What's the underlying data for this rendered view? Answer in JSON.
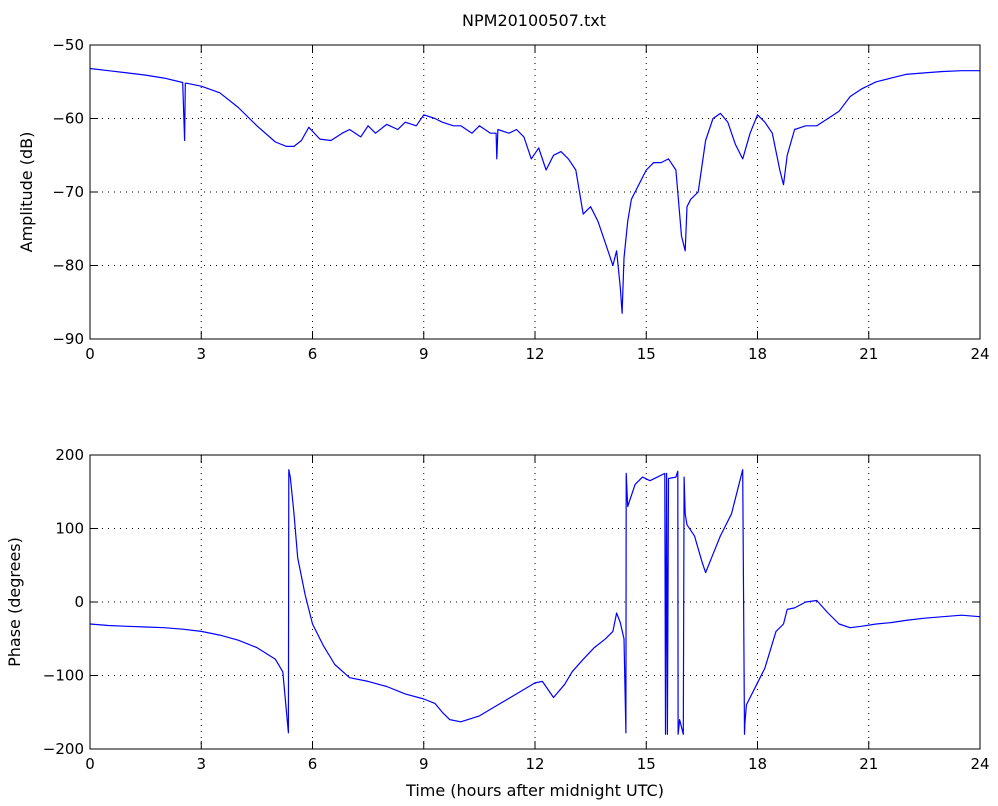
{
  "figure": {
    "title": "NPM20100507.txt"
  },
  "chart_data": [
    {
      "type": "line",
      "title": "NPM20100507.txt",
      "xlabel": "",
      "ylabel": "Amplitude (dB)",
      "xlim": [
        0,
        24
      ],
      "ylim": [
        -90,
        -50
      ],
      "xticks": [
        0,
        3,
        6,
        9,
        12,
        15,
        18,
        21,
        24
      ],
      "yticks": [
        -90,
        -80,
        -70,
        -60,
        -50
      ],
      "ytick_labels": [
        "−90",
        "−80",
        "−70",
        "−60",
        "−50"
      ],
      "grid": true,
      "color": "#0000ff",
      "series": [
        {
          "x": [
            0,
            0.5,
            1,
            1.5,
            2,
            2.5,
            2.55,
            2.57,
            2.6,
            3,
            3.5,
            4,
            4.5,
            5,
            5.3,
            5.5,
            5.7,
            5.9,
            6.2,
            6.5,
            6.8,
            7,
            7.3,
            7.5,
            7.7,
            8,
            8.3,
            8.5,
            8.8,
            9,
            9.3,
            9.5,
            9.8,
            10,
            10.3,
            10.5,
            10.8,
            10.95,
            10.97,
            11,
            11.3,
            11.5,
            11.7,
            11.9,
            12.1,
            12.3,
            12.5,
            12.7,
            12.9,
            13.1,
            13.3,
            13.5,
            13.7,
            13.9,
            14.1,
            14.2,
            14.3,
            14.35,
            14.4,
            14.5,
            14.6,
            14.8,
            15,
            15.2,
            15.4,
            15.6,
            15.8,
            15.95,
            16.05,
            16.1,
            16.2,
            16.4,
            16.6,
            16.8,
            17,
            17.2,
            17.4,
            17.6,
            17.8,
            18,
            18.2,
            18.4,
            18.6,
            18.7,
            18.8,
            19,
            19.3,
            19.6,
            19.9,
            20.2,
            20.5,
            20.8,
            21.2,
            21.6,
            22,
            22.5,
            23,
            23.5,
            24
          ],
          "y": [
            -53.2,
            -53.5,
            -53.8,
            -54.1,
            -54.5,
            -55.1,
            -63,
            -55.2,
            -55.2,
            -55.6,
            -56.5,
            -58.5,
            -61,
            -63.2,
            -63.8,
            -63.8,
            -63,
            -61.2,
            -62.8,
            -63,
            -62,
            -61.5,
            -62.5,
            -61,
            -62,
            -60.8,
            -61.5,
            -60.5,
            -61,
            -59.5,
            -60,
            -60.5,
            -61,
            -61,
            -62,
            -61,
            -62,
            -62,
            -65.5,
            -61.5,
            -62,
            -61.5,
            -62.5,
            -65.5,
            -64,
            -67,
            -65,
            -64.5,
            -65.5,
            -67,
            -73,
            -72,
            -74,
            -77,
            -80,
            -78,
            -83,
            -86.5,
            -79,
            -74,
            -71,
            -69,
            -67,
            -66,
            -66,
            -65.5,
            -67,
            -76,
            -78,
            -72,
            -71,
            -70,
            -63,
            -60,
            -59.3,
            -60.5,
            -63.5,
            -65.5,
            -62,
            -59.5,
            -60.5,
            -62,
            -67,
            -69,
            -65,
            -61.5,
            -61,
            -61,
            -60,
            -59,
            -57,
            -56,
            -55,
            -54.5,
            -54,
            -53.8,
            -53.6,
            -53.5,
            -53.5
          ]
        }
      ]
    },
    {
      "type": "line",
      "title": "",
      "xlabel": "Time (hours after midnight UTC)",
      "ylabel": "Phase (degrees)",
      "xlim": [
        0,
        24
      ],
      "ylim": [
        -200,
        200
      ],
      "xticks": [
        0,
        3,
        6,
        9,
        12,
        15,
        18,
        21,
        24
      ],
      "yticks": [
        -200,
        -100,
        0,
        100,
        200
      ],
      "ytick_labels": [
        "−200",
        "−100",
        "0",
        "100",
        "200"
      ],
      "grid": true,
      "color": "#0000ff",
      "series": [
        {
          "x": [
            0,
            0.5,
            1,
            1.5,
            2,
            2.5,
            3,
            3.5,
            4,
            4.5,
            5,
            5.2,
            5.35,
            5.36,
            5.4,
            5.5,
            5.6,
            5.8,
            6,
            6.3,
            6.6,
            7,
            7.5,
            8,
            8.5,
            9,
            9.3,
            9.5,
            9.7,
            10,
            10.5,
            11,
            11.5,
            12,
            12.2,
            12.5,
            12.8,
            13,
            13.3,
            13.6,
            13.9,
            14.1,
            14.2,
            14.3,
            14.4,
            14.45,
            14.46,
            14.5,
            14.7,
            14.9,
            15.1,
            15.3,
            15.5,
            15.52,
            15.55,
            15.57,
            15.6,
            15.8,
            15.85,
            15.86,
            15.88,
            15.9,
            16,
            16.02,
            16.05,
            16.1,
            16.3,
            16.5,
            16.6,
            16.8,
            17,
            17.3,
            17.6,
            17.65,
            17.66,
            17.7,
            17.9,
            18.2,
            18.5,
            18.7,
            18.8,
            19,
            19.3,
            19.6,
            19.9,
            20.2,
            20.5,
            20.8,
            21.2,
            21.6,
            22,
            22.5,
            23,
            23.5,
            24
          ],
          "y": [
            -30,
            -32,
            -33,
            -34,
            -35,
            -37,
            -40,
            -45,
            -52,
            -62,
            -78,
            -95,
            -178,
            180,
            170,
            120,
            60,
            10,
            -30,
            -60,
            -85,
            -103,
            -108,
            -115,
            -125,
            -132,
            -138,
            -150,
            -160,
            -163,
            -155,
            -140,
            -125,
            -110,
            -108,
            -130,
            -112,
            -95,
            -78,
            -62,
            -50,
            -40,
            -15,
            -28,
            -50,
            -178,
            175,
            130,
            160,
            170,
            165,
            170,
            175,
            -180,
            175,
            -180,
            168,
            170,
            178,
            -180,
            -170,
            -160,
            -180,
            170,
            120,
            105,
            90,
            55,
            40,
            65,
            90,
            120,
            180,
            -180,
            -165,
            -140,
            -120,
            -90,
            -40,
            -30,
            -10,
            -8,
            0,
            2,
            -15,
            -30,
            -35,
            -33,
            -30,
            -28,
            -25,
            -22,
            -20,
            -18,
            -20
          ]
        }
      ]
    }
  ]
}
